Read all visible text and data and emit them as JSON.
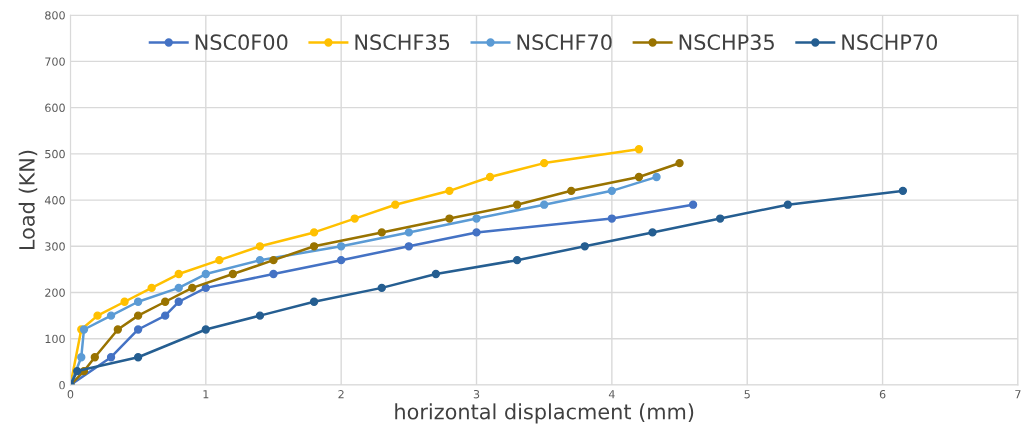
{
  "chart_data": {
    "type": "line",
    "xlabel": "horizontal displacment (mm)",
    "ylabel": "Load (KN)",
    "xlim": [
      0,
      7
    ],
    "xticks": [
      0,
      1,
      2,
      3,
      4,
      5,
      6,
      7
    ],
    "ylim": [
      0,
      800
    ],
    "yticks": [
      0,
      100,
      200,
      300,
      400,
      500,
      600,
      700,
      800
    ],
    "grid": true,
    "legend": "top",
    "marker": "circle",
    "line_style": "solid",
    "series": [
      {
        "name": "NSC0F00",
        "color": "#4472c4",
        "x": [
          0,
          0.3,
          0.5,
          0.7,
          0.8,
          1.0,
          1.5,
          2.0,
          2.5,
          3.0,
          4.0,
          4.6
        ],
        "values": [
          0,
          60,
          120,
          150,
          180,
          210,
          240,
          270,
          300,
          330,
          360,
          390
        ]
      },
      {
        "name": "NSCHF35",
        "color": "#ffc000",
        "x": [
          0,
          0.08,
          0.2,
          0.4,
          0.6,
          0.8,
          1.1,
          1.4,
          1.8,
          2.1,
          2.4,
          2.8,
          3.1,
          3.5,
          4.2
        ],
        "values": [
          0,
          120,
          150,
          180,
          210,
          240,
          270,
          300,
          330,
          360,
          390,
          420,
          450,
          480,
          510
        ]
      },
      {
        "name": "NSCHF70",
        "color": "#5b9bd5",
        "x": [
          0,
          0.08,
          0.1,
          0.3,
          0.5,
          0.8,
          1.0,
          1.4,
          2.0,
          2.5,
          3.0,
          3.5,
          4.0,
          4.33
        ],
        "values": [
          0,
          60,
          120,
          150,
          180,
          210,
          240,
          270,
          300,
          330,
          360,
          390,
          420,
          450
        ]
      },
      {
        "name": "NSCHP35",
        "color": "#997300",
        "x": [
          0,
          0.1,
          0.18,
          0.35,
          0.5,
          0.7,
          0.9,
          1.2,
          1.5,
          1.8,
          2.3,
          2.8,
          3.3,
          3.7,
          4.2,
          4.5
        ],
        "values": [
          0,
          30,
          60,
          120,
          150,
          180,
          210,
          240,
          270,
          300,
          330,
          360,
          390,
          420,
          450,
          480
        ]
      },
      {
        "name": "NSCHP70",
        "color": "#255e91",
        "x": [
          0,
          0.05,
          0.5,
          1.0,
          1.4,
          1.8,
          2.3,
          2.7,
          3.3,
          3.8,
          4.3,
          4.8,
          5.3,
          6.15
        ],
        "values": [
          0,
          30,
          60,
          120,
          150,
          180,
          210,
          240,
          270,
          300,
          330,
          360,
          390,
          420
        ]
      }
    ]
  }
}
